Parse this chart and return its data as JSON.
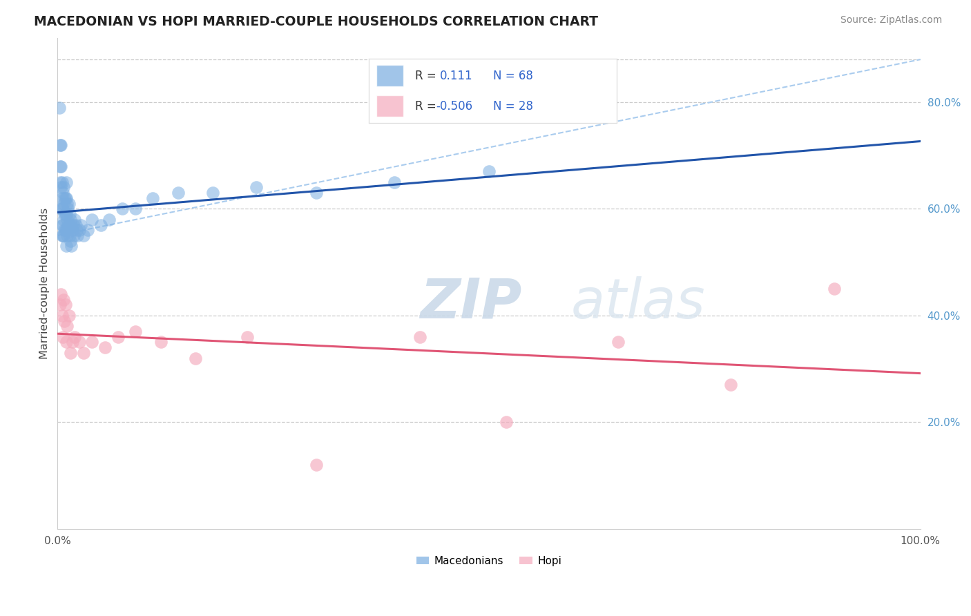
{
  "title": "MACEDONIAN VS HOPI MARRIED-COUPLE HOUSEHOLDS CORRELATION CHART",
  "source": "Source: ZipAtlas.com",
  "ylabel": "Married-couple Households",
  "xlim": [
    0.0,
    1.0
  ],
  "ylim": [
    0.0,
    0.92
  ],
  "ytick_labels_right": [
    "20.0%",
    "40.0%",
    "60.0%",
    "80.0%"
  ],
  "ytick_values_right": [
    0.2,
    0.4,
    0.6,
    0.8
  ],
  "macedonian_R": 0.111,
  "macedonian_N": 68,
  "hopi_R": -0.506,
  "hopi_N": 28,
  "macedonian_color": "#7AADE0",
  "hopi_color": "#F4AABC",
  "macedonian_line_color": "#2255AA",
  "hopi_line_color": "#E05575",
  "trendline_dash_color": "#AACCEE",
  "grid_color": "#CCCCCC",
  "background_color": "#FFFFFF",
  "legend_label_macedonians": "Macedonians",
  "legend_label_hopi": "Hopi",
  "macedonian_x": [
    0.002,
    0.003,
    0.003,
    0.003,
    0.004,
    0.004,
    0.004,
    0.004,
    0.005,
    0.005,
    0.005,
    0.005,
    0.005,
    0.006,
    0.006,
    0.006,
    0.006,
    0.007,
    0.007,
    0.007,
    0.007,
    0.008,
    0.008,
    0.008,
    0.009,
    0.009,
    0.009,
    0.01,
    0.01,
    0.01,
    0.01,
    0.01,
    0.011,
    0.011,
    0.011,
    0.012,
    0.012,
    0.013,
    0.013,
    0.014,
    0.014,
    0.015,
    0.015,
    0.016,
    0.016,
    0.017,
    0.018,
    0.019,
    0.02,
    0.021,
    0.022,
    0.023,
    0.025,
    0.027,
    0.03,
    0.035,
    0.04,
    0.05,
    0.06,
    0.075,
    0.09,
    0.11,
    0.14,
    0.18,
    0.23,
    0.3,
    0.39,
    0.5
  ],
  "macedonian_y": [
    0.79,
    0.72,
    0.68,
    0.65,
    0.72,
    0.68,
    0.64,
    0.6,
    0.65,
    0.62,
    0.6,
    0.57,
    0.55,
    0.63,
    0.6,
    0.57,
    0.55,
    0.64,
    0.61,
    0.58,
    0.55,
    0.62,
    0.59,
    0.56,
    0.62,
    0.59,
    0.56,
    0.65,
    0.62,
    0.59,
    0.56,
    0.53,
    0.61,
    0.58,
    0.55,
    0.6,
    0.57,
    0.61,
    0.57,
    0.59,
    0.55,
    0.58,
    0.54,
    0.57,
    0.53,
    0.56,
    0.57,
    0.55,
    0.58,
    0.57,
    0.56,
    0.55,
    0.56,
    0.57,
    0.55,
    0.56,
    0.58,
    0.57,
    0.58,
    0.6,
    0.6,
    0.62,
    0.63,
    0.63,
    0.64,
    0.63,
    0.65,
    0.67
  ],
  "hopi_x": [
    0.003,
    0.004,
    0.005,
    0.006,
    0.007,
    0.008,
    0.009,
    0.01,
    0.011,
    0.013,
    0.015,
    0.017,
    0.02,
    0.025,
    0.03,
    0.04,
    0.055,
    0.07,
    0.09,
    0.12,
    0.16,
    0.22,
    0.3,
    0.42,
    0.52,
    0.65,
    0.78,
    0.9
  ],
  "hopi_y": [
    0.42,
    0.44,
    0.4,
    0.36,
    0.43,
    0.39,
    0.42,
    0.35,
    0.38,
    0.4,
    0.33,
    0.35,
    0.36,
    0.35,
    0.33,
    0.35,
    0.34,
    0.36,
    0.37,
    0.35,
    0.32,
    0.36,
    0.12,
    0.36,
    0.2,
    0.35,
    0.27,
    0.45
  ],
  "ref_line_x": [
    0.0,
    1.0
  ],
  "ref_line_y": [
    0.55,
    0.88
  ]
}
